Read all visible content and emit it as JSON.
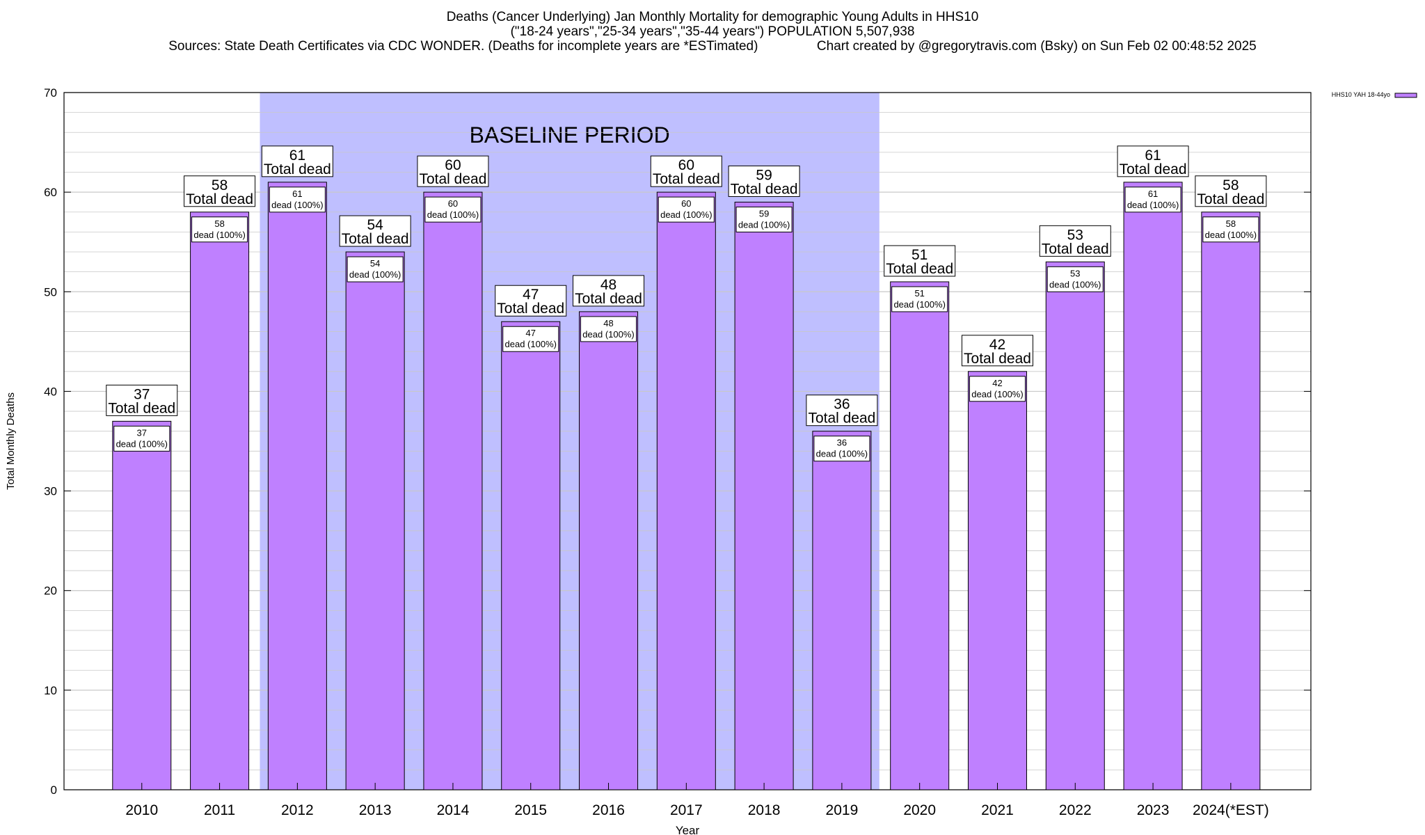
{
  "header": {
    "title_line1": "Deaths (Cancer Underlying) Jan Monthly Mortality for demographic Young Adults in HHS10",
    "title_line2": "(\"18-24 years\",\"25-34 years\",\"35-44 years\") POPULATION 5,507,938",
    "title_line3": "Sources: State Death Certificates via CDC WONDER. (Deaths for incomplete years are *ESTimated)                Chart created by @gregorytravis.com (Bsky) on Sun Feb 02 00:48:52 2025"
  },
  "chart_data": {
    "type": "bar",
    "categories": [
      "2010",
      "2011",
      "2012",
      "2013",
      "2014",
      "2015",
      "2016",
      "2017",
      "2018",
      "2019",
      "2020",
      "2021",
      "2022",
      "2023",
      "2024(*EST)"
    ],
    "series": [
      {
        "name": "HHS10 YAH 18-44yo",
        "values": [
          37,
          58,
          61,
          54,
          60,
          47,
          48,
          60,
          59,
          36,
          51,
          42,
          53,
          61,
          58
        ]
      }
    ],
    "xlabel": "Year",
    "ylabel": "Total Monthly Deaths",
    "ylim": [
      0,
      70
    ],
    "yticks": [
      0,
      10,
      20,
      30,
      40,
      50,
      60,
      70
    ],
    "grid": true,
    "legend_position": "top-right",
    "top_label_suffix": "Total dead",
    "inner_label_suffix": "dead (100%)",
    "baseline_period": {
      "label": "BASELINE PERIOD",
      "from": "2012",
      "to": "2019"
    },
    "colors": {
      "bar": "#bf80ff",
      "baseline_band": "#bfbfff",
      "grid": "#c8c8c8"
    }
  }
}
